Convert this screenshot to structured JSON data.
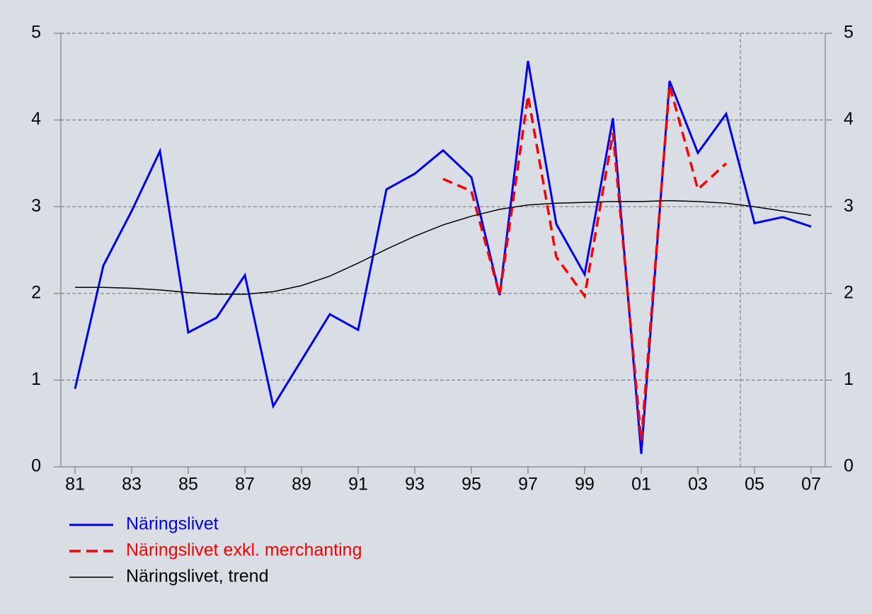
{
  "chart_data": {
    "type": "line",
    "x": [
      1981,
      1982,
      1983,
      1984,
      1985,
      1986,
      1987,
      1988,
      1989,
      1990,
      1991,
      1992,
      1993,
      1994,
      1995,
      1996,
      1997,
      1998,
      1999,
      2000,
      2001,
      2002,
      2003,
      2004,
      2005,
      2006,
      2007
    ],
    "series": [
      {
        "name": "Näringslivet",
        "color": "#0000ff",
        "dash": "solid",
        "values": [
          0.9,
          2.32,
          2.95,
          3.64,
          1.55,
          1.72,
          2.21,
          0.7,
          1.23,
          1.76,
          1.58,
          3.2,
          3.38,
          3.65,
          3.34,
          1.98,
          4.68,
          2.8,
          2.22,
          4.02,
          0.15,
          4.45,
          3.62,
          4.07,
          2.81,
          2.88,
          2.77
        ]
      },
      {
        "name": "Näringslivet exkl. merchanting",
        "color": "#ff0000",
        "dash": "dashed",
        "values": [
          null,
          null,
          null,
          null,
          null,
          null,
          null,
          null,
          null,
          null,
          null,
          null,
          null,
          3.32,
          3.18,
          1.98,
          4.28,
          2.42,
          1.97,
          3.85,
          0.3,
          4.4,
          3.2,
          3.5,
          null,
          null,
          null
        ]
      },
      {
        "name": "Näringslivet, trend",
        "color": "#000000",
        "dash": "thin",
        "values": [
          2.07,
          2.07,
          2.06,
          2.04,
          2.01,
          1.99,
          1.99,
          2.02,
          2.09,
          2.2,
          2.35,
          2.51,
          2.66,
          2.79,
          2.89,
          2.97,
          3.02,
          3.04,
          3.05,
          3.06,
          3.06,
          3.07,
          3.06,
          3.04,
          3.0,
          2.95,
          2.9
        ]
      }
    ],
    "xlim": [
      1980.5,
      2007.5
    ],
    "xticks": [
      {
        "value": 1981,
        "label": "81"
      },
      {
        "value": 1983,
        "label": "83"
      },
      {
        "value": 1985,
        "label": "85"
      },
      {
        "value": 1987,
        "label": "87"
      },
      {
        "value": 1989,
        "label": "89"
      },
      {
        "value": 1991,
        "label": "91"
      },
      {
        "value": 1993,
        "label": "93"
      },
      {
        "value": 1995,
        "label": "95"
      },
      {
        "value": 1997,
        "label": "97"
      },
      {
        "value": 1999,
        "label": "99"
      },
      {
        "value": 2001,
        "label": "01"
      },
      {
        "value": 2003,
        "label": "03"
      },
      {
        "value": 2005,
        "label": "05"
      },
      {
        "value": 2007,
        "label": "07"
      }
    ],
    "ylim": [
      0,
      5
    ],
    "yticks": [
      0,
      1,
      2,
      3,
      4,
      5
    ],
    "y2lim": [
      0,
      5
    ],
    "y2ticks": [
      0,
      1,
      2,
      3,
      4,
      5
    ],
    "vline": 2004.5,
    "grid": true
  }
}
